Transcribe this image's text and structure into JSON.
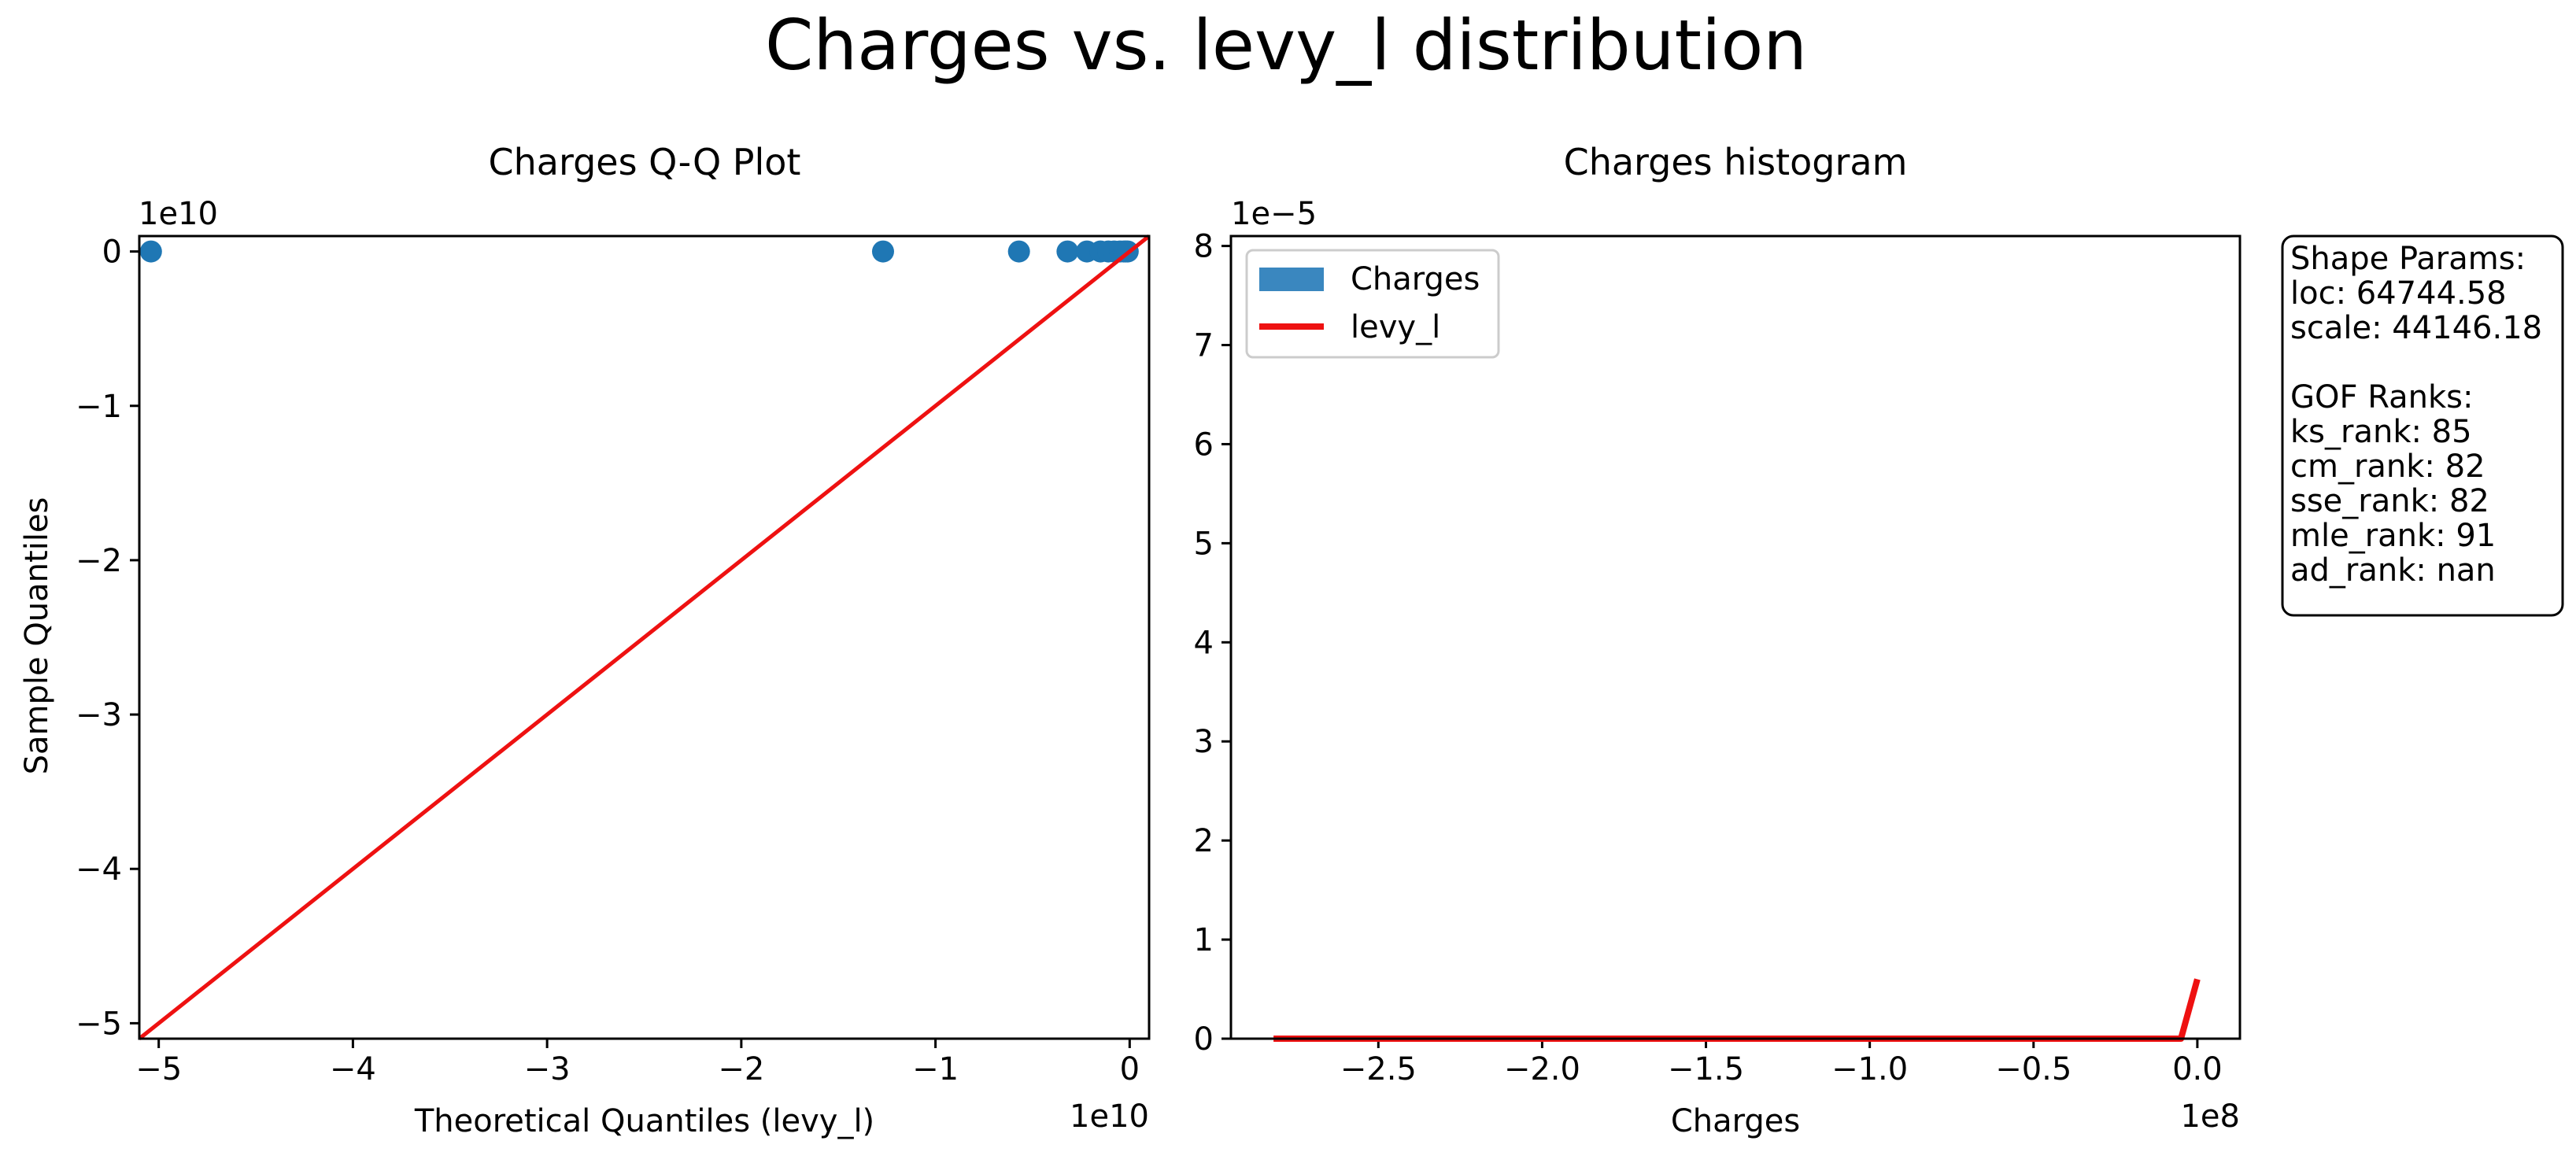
{
  "figure": {
    "title": "Charges vs. levy_l distribution"
  },
  "chart_data": [
    {
      "type": "scatter",
      "title": "Charges Q-Q Plot",
      "xlabel": "Theoretical Quantiles (levy_l)",
      "ylabel": "Sample Quantiles",
      "x_offset_label": "1e10",
      "y_offset_label": "1e10",
      "xlim": [
        -5.1,
        0.1
      ],
      "ylim": [
        -5.1,
        0.1
      ],
      "x_ticks": [
        -5,
        -4,
        -3,
        -2,
        -1,
        0
      ],
      "x_tick_labels": [
        "−5",
        "−4",
        "−3",
        "−2",
        "−1",
        "0"
      ],
      "y_ticks": [
        0,
        -1,
        -2,
        -3,
        -4,
        -5
      ],
      "y_tick_labels": [
        "0",
        "−1",
        "−2",
        "−3",
        "−4",
        "−5"
      ],
      "grid": false,
      "series": [
        {
          "kind": "points",
          "color": "#1f77b4",
          "x": [
            -5.04,
            -1.27,
            -0.57,
            -0.32,
            -0.22,
            -0.15,
            -0.11,
            -0.08,
            -0.05,
            -0.03,
            -0.02,
            -0.01
          ],
          "y": [
            0,
            0,
            0,
            0,
            0,
            0,
            0,
            0,
            0,
            0,
            0,
            0
          ]
        },
        {
          "kind": "line",
          "color": "#ee1111",
          "x": [
            -5.1,
            0.1
          ],
          "y": [
            -5.1,
            0.1
          ]
        }
      ]
    },
    {
      "type": "bar",
      "title": "Charges histogram",
      "xlabel": "Charges",
      "ylabel": "",
      "x_offset_label": "1e8",
      "y_offset_label": "1e−5",
      "xlim": [
        -2.95,
        0.13
      ],
      "ylim": [
        0,
        8.1
      ],
      "x_ticks": [
        -2.5,
        -2.0,
        -1.5,
        -1.0,
        -0.5,
        0.0
      ],
      "x_tick_labels": [
        "−2.5",
        "−2.0",
        "−1.5",
        "−1.0",
        "−0.5",
        "0.0"
      ],
      "y_ticks": [
        0,
        1,
        2,
        3,
        4,
        5,
        6,
        7,
        8
      ],
      "y_tick_labels": [
        "0",
        "1",
        "2",
        "3",
        "4",
        "5",
        "6",
        "7",
        "8"
      ],
      "grid": false,
      "legend": {
        "placement": "upper-left",
        "entries": [
          {
            "label": "Charges",
            "kind": "patch",
            "color": "#3a87bf"
          },
          {
            "label": "levy_l",
            "kind": "line",
            "color": "#ee1111"
          }
        ]
      },
      "series": [
        {
          "name": "levy_l",
          "kind": "line",
          "color": "#ee1111",
          "x": [
            -2.82,
            -0.05,
            0.0
          ],
          "y": [
            0,
            0,
            0.6
          ]
        }
      ]
    }
  ],
  "info_box": {
    "lines": [
      "Shape Params:",
      "loc: 64744.58",
      "scale: 44146.18",
      "",
      "GOF Ranks:",
      "ks_rank: 85",
      "cm_rank: 82",
      "sse_rank: 82",
      "mle_rank: 91",
      "ad_rank: nan"
    ]
  }
}
